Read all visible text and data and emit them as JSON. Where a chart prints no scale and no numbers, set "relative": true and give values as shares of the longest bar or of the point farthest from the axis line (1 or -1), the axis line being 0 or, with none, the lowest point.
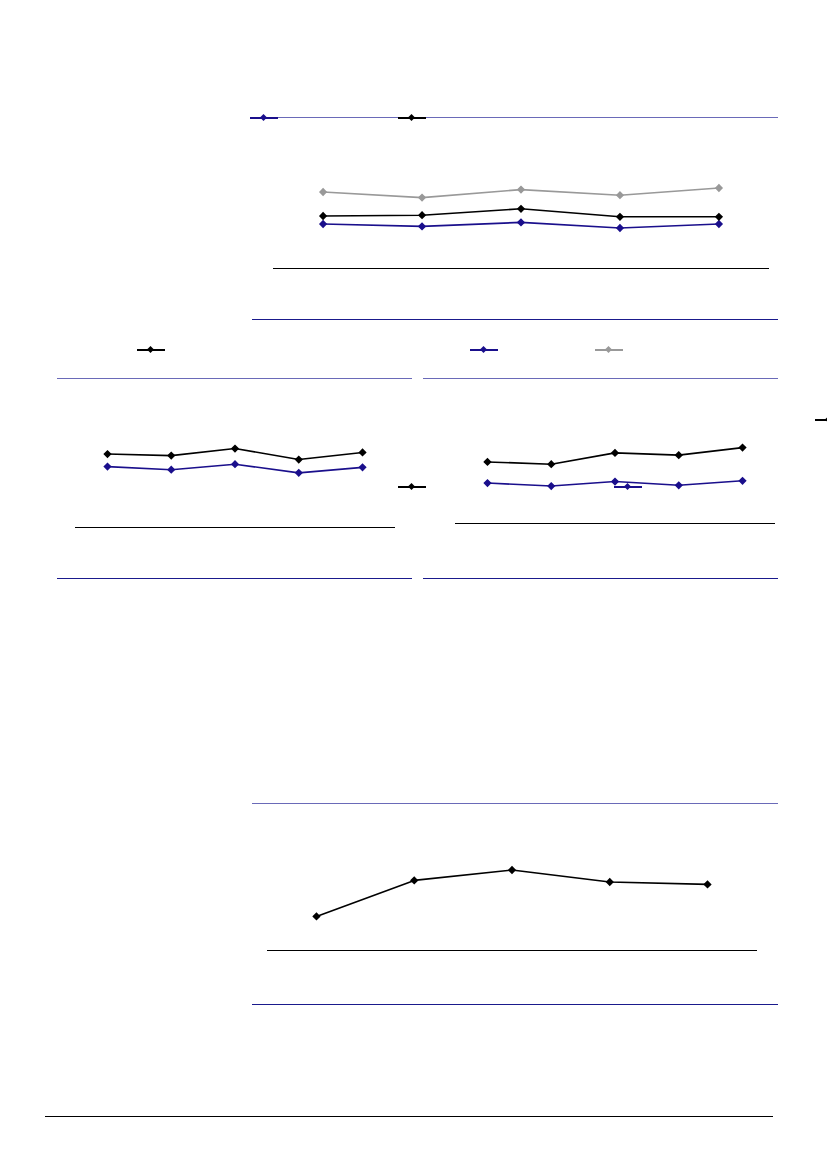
{
  "chart_data": [
    {
      "type": "line",
      "relative": true,
      "categories": [
        null,
        null,
        null,
        null,
        null
      ],
      "marker": "diamond",
      "line_style": "solid",
      "grid": false,
      "tick_labels": false,
      "series": [
        {
          "color": "#000000",
          "values": [
            0.65,
            0.66,
            0.74,
            0.64,
            0.64
          ]
        },
        {
          "color": "#1a0f8c",
          "values": [
            0.55,
            0.52,
            0.57,
            0.5,
            0.55
          ]
        },
        {
          "color": "#999999",
          "values": [
            0.95,
            0.88,
            0.98,
            0.91,
            1
          ]
        }
      ]
    },
    {
      "type": "line",
      "relative": true,
      "categories": [
        null,
        null,
        null,
        null,
        null
      ],
      "marker": "diamond",
      "line_style": "solid",
      "grid": false,
      "tick_labels": false,
      "series": [
        {
          "color": "#000000",
          "values": [
            0.93,
            0.91,
            1,
            0.86,
            0.95
          ]
        },
        {
          "color": "#1a0f8c",
          "values": [
            0.77,
            0.73,
            0.8,
            0.69,
            0.76
          ]
        }
      ]
    },
    {
      "type": "line",
      "relative": true,
      "categories": [
        null,
        null,
        null,
        null,
        null
      ],
      "marker": "diamond",
      "line_style": "solid",
      "grid": false,
      "tick_labels": false,
      "series": [
        {
          "color": "#000000",
          "values": [
            0.81,
            0.78,
            0.93,
            0.9,
            1
          ]
        },
        {
          "color": "#1a0f8c",
          "values": [
            0.53,
            0.49,
            0.55,
            0.5,
            0.56
          ]
        }
      ]
    },
    {
      "type": "line",
      "relative": true,
      "categories": [
        null,
        null,
        null,
        null,
        null
      ],
      "marker": "diamond",
      "line_style": "solid",
      "grid": false,
      "tick_labels": false,
      "series": [
        {
          "color": "#000000",
          "values": [
            0.42,
            0.87,
            1,
            0.85,
            0.82
          ]
        }
      ]
    }
  ]
}
